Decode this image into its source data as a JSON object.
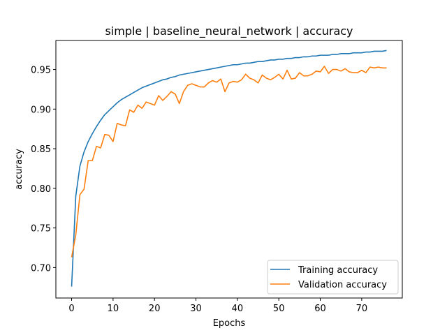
{
  "chart_data": {
    "type": "line",
    "title": "simple | baseline_neural_network | accuracy",
    "xlabel": "Epochs",
    "ylabel": "accuracy",
    "xlim": [
      -3.8,
      79.8
    ],
    "ylim": [
      0.6616,
      0.9866
    ],
    "x_ticks": [
      0,
      10,
      20,
      30,
      40,
      50,
      60,
      70
    ],
    "y_ticks": [
      0.7,
      0.75,
      0.8,
      0.85,
      0.9,
      0.95
    ],
    "y_tick_labels": [
      "0.70",
      "0.75",
      "0.80",
      "0.85",
      "0.90",
      "0.95"
    ],
    "grid": false,
    "legend_position": "lower-right",
    "x": [
      0,
      1,
      2,
      3,
      4,
      5,
      6,
      7,
      8,
      9,
      10,
      11,
      12,
      13,
      14,
      15,
      16,
      17,
      18,
      19,
      20,
      21,
      22,
      23,
      24,
      25,
      26,
      27,
      28,
      29,
      30,
      31,
      32,
      33,
      34,
      35,
      36,
      37,
      38,
      39,
      40,
      41,
      42,
      43,
      44,
      45,
      46,
      47,
      48,
      49,
      50,
      51,
      52,
      53,
      54,
      55,
      56,
      57,
      58,
      59,
      60,
      61,
      62,
      63,
      64,
      65,
      66,
      67,
      68,
      69,
      70,
      71,
      72,
      73,
      74,
      75,
      76
    ],
    "series": [
      {
        "name": "Training accuracy",
        "color": "#1f77b4",
        "values": [
          0.676,
          0.79,
          0.828,
          0.846,
          0.859,
          0.869,
          0.878,
          0.886,
          0.893,
          0.898,
          0.903,
          0.908,
          0.912,
          0.915,
          0.918,
          0.921,
          0.924,
          0.927,
          0.929,
          0.931,
          0.933,
          0.935,
          0.937,
          0.938,
          0.94,
          0.941,
          0.943,
          0.944,
          0.945,
          0.946,
          0.947,
          0.948,
          0.949,
          0.95,
          0.951,
          0.952,
          0.953,
          0.954,
          0.955,
          0.956,
          0.956,
          0.957,
          0.958,
          0.958,
          0.959,
          0.96,
          0.96,
          0.961,
          0.962,
          0.962,
          0.963,
          0.963,
          0.964,
          0.964,
          0.965,
          0.965,
          0.966,
          0.966,
          0.967,
          0.967,
          0.968,
          0.968,
          0.968,
          0.969,
          0.969,
          0.97,
          0.97,
          0.97,
          0.971,
          0.971,
          0.971,
          0.972,
          0.972,
          0.973,
          0.973,
          0.973,
          0.974
        ]
      },
      {
        "name": "Validation accuracy",
        "color": "#ff7f0e",
        "values": [
          0.713,
          0.741,
          0.792,
          0.799,
          0.835,
          0.835,
          0.853,
          0.851,
          0.868,
          0.867,
          0.859,
          0.882,
          0.88,
          0.879,
          0.899,
          0.896,
          0.905,
          0.901,
          0.909,
          0.907,
          0.905,
          0.917,
          0.911,
          0.916,
          0.922,
          0.919,
          0.907,
          0.922,
          0.93,
          0.932,
          0.93,
          0.928,
          0.928,
          0.933,
          0.936,
          0.934,
          0.938,
          0.922,
          0.933,
          0.935,
          0.934,
          0.937,
          0.944,
          0.939,
          0.937,
          0.933,
          0.943,
          0.939,
          0.937,
          0.94,
          0.944,
          0.938,
          0.949,
          0.938,
          0.939,
          0.946,
          0.942,
          0.942,
          0.944,
          0.948,
          0.947,
          0.954,
          0.945,
          0.95,
          0.95,
          0.948,
          0.951,
          0.947,
          0.946,
          0.946,
          0.949,
          0.946,
          0.953,
          0.952,
          0.953,
          0.952,
          0.952
        ]
      }
    ]
  }
}
